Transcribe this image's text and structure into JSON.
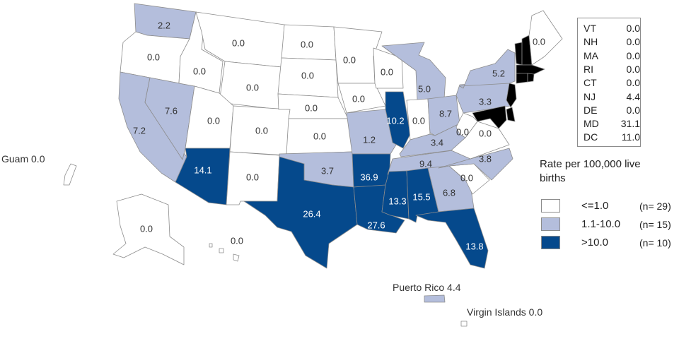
{
  "map": {
    "legend": {
      "title": "Rate per 100,000 live births",
      "items": [
        {
          "label": "<=1.0",
          "count": "(n= 29)",
          "color": "#ffffff"
        },
        {
          "label": "1.1-10.0",
          "count": "(n= 15)",
          "color": "#b4bedc"
        },
        {
          "label": ">10.0",
          "count": "(n= 10)",
          "color": "#05498c"
        }
      ]
    },
    "small_states": [
      {
        "abbr": "VT",
        "value": "0.0"
      },
      {
        "abbr": "NH",
        "value": "0.0"
      },
      {
        "abbr": "MA",
        "value": "0.0"
      },
      {
        "abbr": "RI",
        "value": "0.0"
      },
      {
        "abbr": "CT",
        "value": "0.0"
      },
      {
        "abbr": "NJ",
        "value": "4.4"
      },
      {
        "abbr": "DE",
        "value": "0.0"
      },
      {
        "abbr": "MD",
        "value": "31.1"
      },
      {
        "abbr": "DC",
        "value": "11.0"
      }
    ],
    "territories": {
      "guam": "Guam 0.0",
      "puerto_rico": "Puerto Rico 4.4",
      "virgin_islands": "Virgin Islands 0.0"
    },
    "states": [
      {
        "id": "WA",
        "value": "2.2",
        "category": "mid"
      },
      {
        "id": "OR",
        "value": "0.0",
        "category": "low"
      },
      {
        "id": "CA",
        "value": "7.2",
        "category": "mid"
      },
      {
        "id": "NV",
        "value": "7.6",
        "category": "mid"
      },
      {
        "id": "ID",
        "value": "0.0",
        "category": "low"
      },
      {
        "id": "MT",
        "value": "0.0",
        "category": "low"
      },
      {
        "id": "WY",
        "value": "0.0",
        "category": "low"
      },
      {
        "id": "UT",
        "value": "0.0",
        "category": "low"
      },
      {
        "id": "AZ",
        "value": "14.1",
        "category": "high"
      },
      {
        "id": "CO",
        "value": "0.0",
        "category": "low"
      },
      {
        "id": "NM",
        "value": "0.0",
        "category": "low"
      },
      {
        "id": "ND",
        "value": "0.0",
        "category": "low"
      },
      {
        "id": "SD",
        "value": "0.0",
        "category": "low"
      },
      {
        "id": "NE",
        "value": "0.0",
        "category": "low"
      },
      {
        "id": "KS",
        "value": "0.0",
        "category": "low"
      },
      {
        "id": "OK",
        "value": "3.7",
        "category": "mid"
      },
      {
        "id": "TX",
        "value": "26.4",
        "category": "high"
      },
      {
        "id": "MN",
        "value": "0.0",
        "category": "low"
      },
      {
        "id": "IA",
        "value": "0.0",
        "category": "low"
      },
      {
        "id": "MO",
        "value": "1.2",
        "category": "mid"
      },
      {
        "id": "AR",
        "value": "36.9",
        "category": "high"
      },
      {
        "id": "LA",
        "value": "27.6",
        "category": "high"
      },
      {
        "id": "WI",
        "value": "0.0",
        "category": "low"
      },
      {
        "id": "IL",
        "value": "10.2",
        "category": "high"
      },
      {
        "id": "MI",
        "value": "5.0",
        "category": "mid"
      },
      {
        "id": "IN",
        "value": "0.0",
        "category": "low"
      },
      {
        "id": "OH",
        "value": "8.7",
        "category": "mid"
      },
      {
        "id": "KY",
        "value": "3.4",
        "category": "mid"
      },
      {
        "id": "TN",
        "value": "9.4",
        "category": "mid"
      },
      {
        "id": "MS",
        "value": "13.3",
        "category": "high"
      },
      {
        "id": "AL",
        "value": "15.5",
        "category": "high"
      },
      {
        "id": "GA",
        "value": "6.8",
        "category": "mid"
      },
      {
        "id": "FL",
        "value": "13.8",
        "category": "high"
      },
      {
        "id": "SC",
        "value": "0.0",
        "category": "low"
      },
      {
        "id": "NC",
        "value": "3.8",
        "category": "mid"
      },
      {
        "id": "VA",
        "value": "0.0",
        "category": "low"
      },
      {
        "id": "WV",
        "value": "0.0",
        "category": "low"
      },
      {
        "id": "PA",
        "value": "3.3",
        "category": "mid"
      },
      {
        "id": "NY",
        "value": "5.2",
        "category": "mid"
      },
      {
        "id": "ME",
        "value": "0.0",
        "category": "low"
      },
      {
        "id": "AK",
        "value": "0.0",
        "category": "low"
      },
      {
        "id": "HI",
        "value": "0.0",
        "category": "low"
      }
    ]
  }
}
